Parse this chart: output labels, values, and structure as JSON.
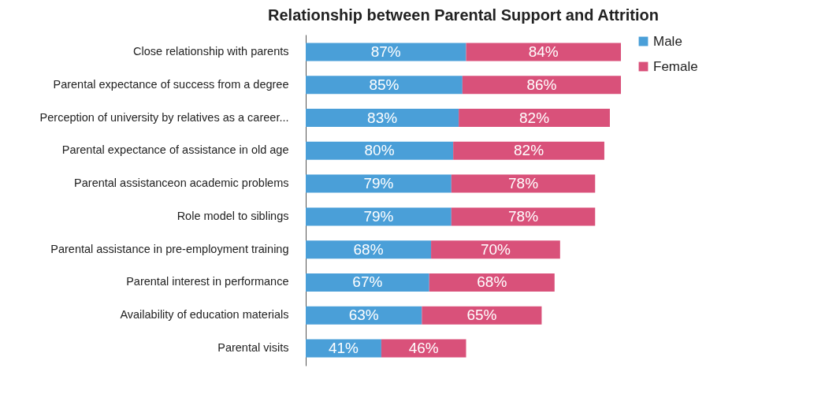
{
  "chart_data": {
    "type": "bar",
    "orientation": "horizontal",
    "stacked": true,
    "title": "Relationship between Parental Support and Attrition",
    "categories": [
      "Close relationship with parents",
      "Parental expectance of success from a degree",
      "Perception of university by relatives as a career...",
      "Parental expectance of assistance in old age",
      "Parental assistanceon academic problems",
      "Role model to siblings",
      "Parental assistance in pre-employment training",
      "Parental interest in performance",
      "Availability of education materials",
      "Parental visits"
    ],
    "series": [
      {
        "name": "Male",
        "color": "#4a9fd8",
        "values": [
          87,
          85,
          83,
          80,
          79,
          79,
          68,
          67,
          63,
          41
        ],
        "value_labels": [
          "87%",
          "85%",
          "83%",
          "80%",
          "79%",
          "79%",
          "68%",
          "67%",
          "63%",
          "41%"
        ]
      },
      {
        "name": "Female",
        "color": "#d9517a",
        "values": [
          84,
          86,
          82,
          82,
          78,
          78,
          70,
          68,
          65,
          46
        ],
        "value_labels": [
          "84%",
          "86%",
          "82%",
          "82%",
          "78%",
          "78%",
          "70%",
          "68%",
          "65%",
          "46%"
        ]
      }
    ],
    "legend": "right",
    "grid": false
  }
}
